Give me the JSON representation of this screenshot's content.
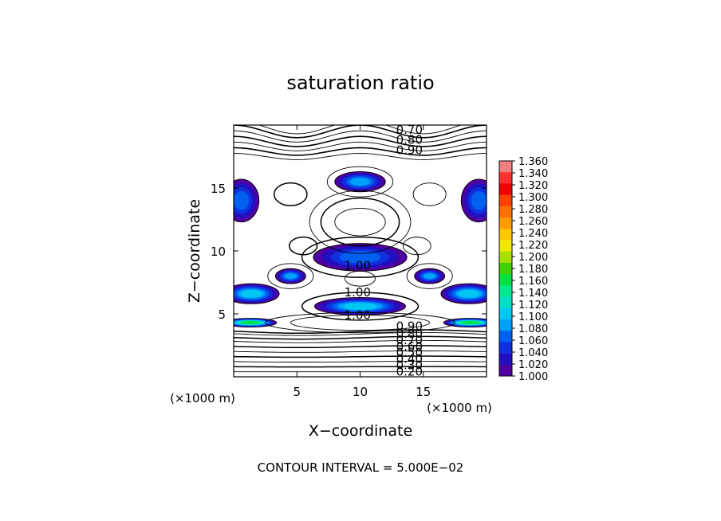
{
  "chart_data": {
    "type": "heatmap",
    "title": "saturation ratio",
    "xlabel": "X−coordinate",
    "ylabel": "Z−coordinate",
    "x_unit_left": "(×1000 m)",
    "x_unit_right": "(×1000 m)",
    "xlim": [
      0,
      20
    ],
    "ylim": [
      0,
      20
    ],
    "x_ticks": [
      5,
      10,
      15
    ],
    "y_ticks": [
      5,
      10,
      15
    ],
    "x_tick_labels": [
      "5",
      "10",
      "15"
    ],
    "y_tick_labels": [
      "5",
      "10",
      "15"
    ],
    "footer": "CONTOUR INTERVAL = 5.000E−02",
    "contour_interval": 0.05,
    "contour_labels_top": [
      "0.70",
      "0.80",
      "0.90"
    ],
    "contour_labels_mid": [
      "1.00",
      "1.00",
      "1.00"
    ],
    "contour_labels_low": [
      "0.90",
      "0.80",
      "0.70",
      "0.60",
      "0.50",
      "0.40",
      "0.30",
      "0.20"
    ],
    "colorbar": {
      "min": 1.0,
      "max": 1.36,
      "step": 0.02,
      "labels": [
        "1.360",
        "1.340",
        "1.320",
        "1.300",
        "1.280",
        "1.260",
        "1.240",
        "1.220",
        "1.200",
        "1.180",
        "1.160",
        "1.140",
        "1.120",
        "1.100",
        "1.080",
        "1.060",
        "1.040",
        "1.020",
        "1.000"
      ],
      "colors": [
        "#f08080",
        "#ff3030",
        "#f00000",
        "#ff4000",
        "#ff7000",
        "#ff9c00",
        "#ffc800",
        "#f0e800",
        "#a8e000",
        "#40d000",
        "#00e040",
        "#00e890",
        "#00e0c8",
        "#00c8f0",
        "#00a0ff",
        "#0060f0",
        "#1030e0",
        "#2010c0",
        "#5000a0"
      ]
    },
    "filled_regions": [
      {
        "name": "upper-central-band",
        "x": 10,
        "z": 15.5,
        "rx": 2,
        "rz": 0.8,
        "level": 1.08
      },
      {
        "name": "left-upper-edge",
        "x": 0.6,
        "z": 14,
        "rx": 1.4,
        "rz": 1.7,
        "level": 1.06
      },
      {
        "name": "right-upper-edge",
        "x": 19.4,
        "z": 14,
        "rx": 1.4,
        "rz": 1.7,
        "level": 1.06
      },
      {
        "name": "mid-central-band",
        "x": 10,
        "z": 9.5,
        "rx": 3.7,
        "rz": 1.1,
        "level": 1.06
      },
      {
        "name": "mid-left-spot",
        "x": 4.5,
        "z": 8,
        "rx": 1.2,
        "rz": 0.6,
        "level": 1.08
      },
      {
        "name": "mid-right-spot",
        "x": 15.5,
        "z": 8,
        "rx": 1.2,
        "rz": 0.6,
        "level": 1.08
      },
      {
        "name": "left-low-band",
        "x": 1.4,
        "z": 6.6,
        "rx": 2.2,
        "rz": 0.8,
        "level": 1.1
      },
      {
        "name": "right-low-band",
        "x": 18.6,
        "z": 6.6,
        "rx": 2.2,
        "rz": 0.8,
        "level": 1.1
      },
      {
        "name": "central-low-layer",
        "x": 10,
        "z": 5.6,
        "rx": 3.6,
        "rz": 0.7,
        "level": 1.1
      },
      {
        "name": "left-green-strip",
        "x": 1.3,
        "z": 4.3,
        "rx": 2.1,
        "rz": 0.35,
        "level": 1.16
      },
      {
        "name": "right-green-strip",
        "x": 18.7,
        "z": 4.3,
        "rx": 2.1,
        "rz": 0.35,
        "level": 1.16
      }
    ]
  }
}
